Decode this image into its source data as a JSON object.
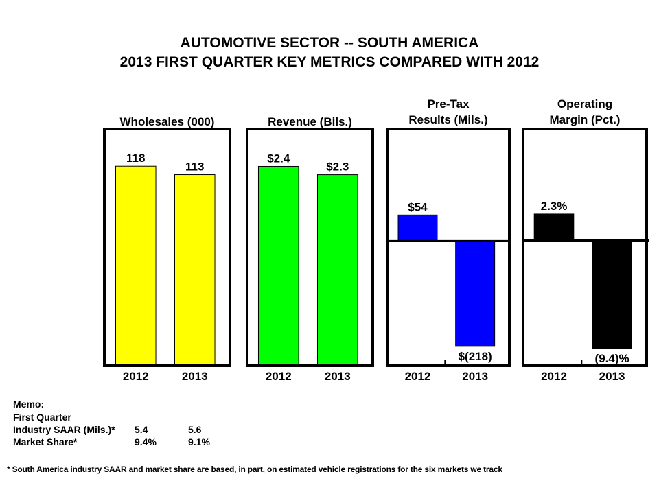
{
  "title": {
    "line1": "AUTOMOTIVE SECTOR -- SOUTH AMERICA",
    "line2": "2013 FIRST QUARTER KEY METRICS COMPARED WITH 2012"
  },
  "chart_data": [
    {
      "type": "bar",
      "title": "Wholesales (000)",
      "title_lines": [
        "Wholesales (000)"
      ],
      "categories": [
        "2012",
        "2013"
      ],
      "values": [
        118,
        113
      ],
      "labels": [
        "118",
        "113"
      ],
      "color": "#ffff00",
      "ylim": [
        0,
        140
      ]
    },
    {
      "type": "bar",
      "title": "Revenue (Bils.)",
      "title_lines": [
        "Revenue (Bils.)"
      ],
      "categories": [
        "2012",
        "2013"
      ],
      "values": [
        2.4,
        2.3
      ],
      "labels": [
        "$2.4",
        "$2.3"
      ],
      "color": "#00ff00",
      "ylim": [
        0,
        2.85
      ]
    },
    {
      "type": "bar",
      "title": "Pre-Tax Results (Mils.)",
      "title_lines": [
        "Pre-Tax",
        "Results (Mils.)"
      ],
      "categories": [
        "2012",
        "2013"
      ],
      "values": [
        54,
        -218
      ],
      "labels": [
        "$54",
        "$(218)"
      ],
      "color": "#0000ff",
      "ylim": [
        -258,
        232
      ]
    },
    {
      "type": "bar",
      "title": "Operating Margin (Pct.)",
      "title_lines": [
        "Operating",
        "Margin (Pct.)"
      ],
      "categories": [
        "2012",
        "2013"
      ],
      "values": [
        2.3,
        -9.4
      ],
      "labels": [
        "2.3%",
        "(9.4)%"
      ],
      "color": "#000000",
      "ylim": [
        -10.9,
        9.7
      ]
    }
  ],
  "memo": {
    "heading": "Memo:",
    "subheading": "First Quarter",
    "rows": [
      {
        "label": "Industry SAAR (Mils.)*",
        "v2012": "5.4",
        "v2013": "5.6"
      },
      {
        "label": "Market Share*",
        "v2012": "9.4%",
        "v2013": "9.1%"
      }
    ]
  },
  "footnote": "*  South America industry  SAAR and market share are based, in part, on estimated vehicle registrations  for the six markets we track"
}
